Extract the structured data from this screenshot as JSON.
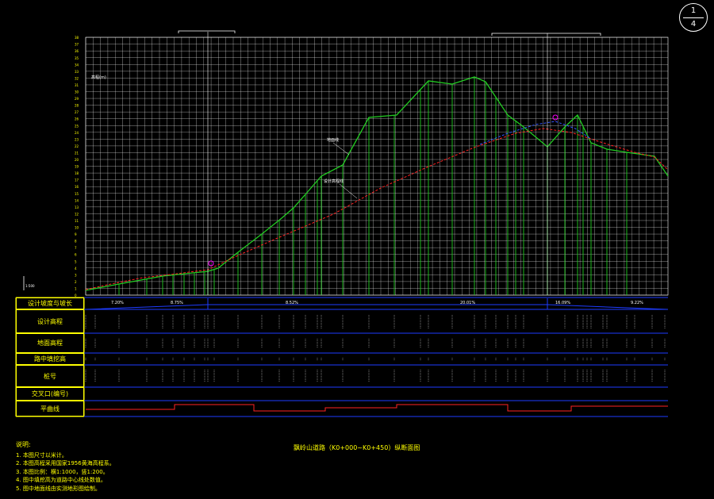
{
  "sheet": {
    "current": "1",
    "total": "4"
  },
  "grid_labels": {
    "ground_line": "地面线",
    "design_line": "设计高程线",
    "scale_mark": "1:500",
    "vertical_axis": "高程(m)"
  },
  "table": {
    "rows": [
      {
        "key": "slope",
        "label": "设计坡度与坡长"
      },
      {
        "key": "design_elev",
        "label": "设计高程"
      },
      {
        "key": "ground_elev",
        "label": "地面高程"
      },
      {
        "key": "cut_fill",
        "label": "路中填挖高"
      },
      {
        "key": "station",
        "label": "桩号"
      },
      {
        "key": "crossing",
        "label": "交叉口(编号)"
      },
      {
        "key": "alignment",
        "label": "平曲线"
      }
    ],
    "slopes": [
      "7.20%",
      "8.75%",
      "8.52%",
      "20.01%",
      "16.09%",
      "9.22%"
    ]
  },
  "drawing_title": "飘岭山道路（K0+000~K0+450）纵断面图",
  "notes": {
    "title": "说明:",
    "items": [
      "1. 本图尺寸以米计。",
      "2. 本图高程采用国家1956黄海高程系。",
      "3. 本图比例：横1:1000，竖1:200。",
      "4. 图中填挖高为道路中心线处数值。",
      "5. 图中地面线由实测地形图绘制。"
    ]
  },
  "colors": {
    "grid": "#ffffff",
    "ground_line": "#22cc22",
    "design_line": "#ff2222",
    "table_border": "#ffff00",
    "row_separator": "#1e3cff",
    "highlight": "#ff00ff",
    "label": "#ffff00"
  }
}
